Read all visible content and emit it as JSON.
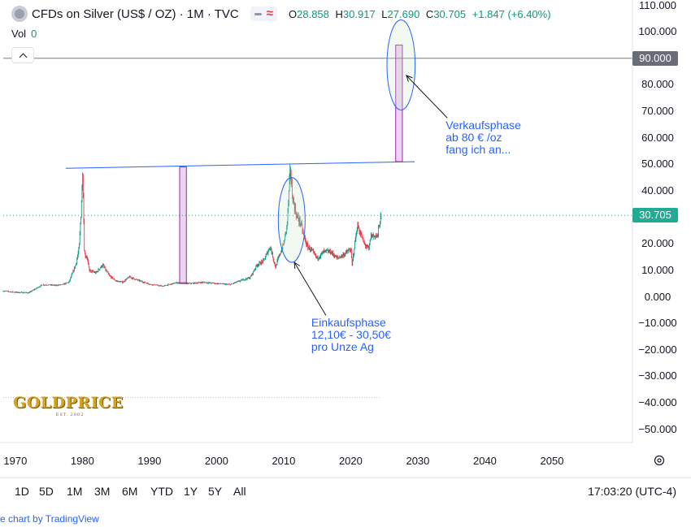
{
  "header": {
    "title": "CFDs on Silver (US$ / OZ) · 1M · TVC",
    "ohlc": [
      {
        "key": "O",
        "value": "28.858"
      },
      {
        "key": "H",
        "value": "30.917"
      },
      {
        "key": "L",
        "value": "27.690"
      },
      {
        "key": "C",
        "value": "30.705"
      }
    ],
    "change": "+1.847 (+6.40%)",
    "vol_label": "Vol",
    "vol_value": "0"
  },
  "colors": {
    "up": "#089981",
    "down": "#f23645",
    "annotation": "#2962ff",
    "band": "#9c27b0",
    "last_price_tag": "#22ab94",
    "level_tag": "#6a6d78"
  },
  "chart_data": {
    "type": "line",
    "symbol": "CFDs on Silver (US$ / OZ)",
    "interval": "1M",
    "x_axis": {
      "range": [
        1968.2,
        2062
      ],
      "ticks": [
        1970,
        1980,
        1990,
        2000,
        2010,
        2020,
        2030,
        2040,
        2050
      ]
    },
    "y_axis": {
      "range": [
        -55,
        112
      ],
      "ticks": [
        110,
        100,
        90,
        80,
        70,
        60,
        50,
        40,
        30,
        20,
        10,
        0,
        -10,
        -20,
        -30,
        -40,
        -50
      ],
      "tick_labels": [
        "110.000",
        "100.000",
        "90.000",
        "80.000",
        "70.000",
        "60.000",
        "50.000",
        "40.000",
        "30.000",
        "20.000",
        "10.000",
        "0.000",
        "−10.000",
        "−20.000",
        "−30.000",
        "−40.000",
        "−50.000"
      ]
    },
    "series": [
      {
        "x": [
          1968.2,
          1970,
          1972,
          1973,
          1974,
          1975,
          1976,
          1977,
          1978,
          1979,
          1979.5,
          1979.8,
          1980.05,
          1980.3,
          1980.7,
          1981,
          1982,
          1983,
          1984,
          1985,
          1986,
          1987,
          1988,
          1990,
          1992,
          1994,
          1996,
          1998,
          2000,
          2002,
          2004,
          2005,
          2006,
          2007,
          2008,
          2008.8,
          2009,
          2010,
          2010.5,
          2011,
          2011.3,
          2011.7,
          2012,
          2012.5,
          2013,
          2013.5,
          2014,
          2015,
          2016,
          2017,
          2018,
          2019,
          2020,
          2020.2,
          2020.6,
          2021,
          2022,
          2022.7,
          2023,
          2023.5,
          2024,
          2024.3,
          2024.6
        ],
        "y": [
          2.2,
          1.7,
          1.5,
          3,
          4.5,
          4.5,
          4.3,
          4.6,
          5.5,
          12,
          18,
          32,
          48,
          16,
          15,
          10,
          9,
          12,
          8,
          6,
          5.5,
          7.5,
          6.5,
          4.8,
          4,
          5.3,
          5,
          5.5,
          5,
          4.6,
          6.5,
          7.2,
          12,
          13.5,
          19,
          11,
          13,
          20,
          27,
          48.5,
          38,
          33,
          30,
          28,
          23,
          19,
          18,
          14.5,
          17,
          17,
          14.5,
          16,
          18,
          12,
          20,
          27,
          20,
          18,
          23,
          23,
          23,
          28,
          30.7
        ]
      }
    ],
    "levels": [
      {
        "value": 90,
        "label": "90.000"
      },
      {
        "value": 30.705,
        "label": "30.705"
      }
    ],
    "trendline": {
      "x1": 1977.5,
      "y1": 48.5,
      "x2": 2029.5,
      "y2": 51
    },
    "bands": [
      {
        "x1": 1994.5,
        "x2": 1995.5,
        "y1": 5,
        "y2": 49
      },
      {
        "x1": 2026.7,
        "x2": 2027.7,
        "y1": 51,
        "y2": 95
      }
    ],
    "ellipses": [
      {
        "cx": 2011.2,
        "cy": 29,
        "rx": 2.0,
        "ry": 16
      },
      {
        "cx": 2027.5,
        "cy": 87.5,
        "rx": 2.1,
        "ry": 17
      }
    ],
    "annotations": [
      {
        "id": "sell",
        "text": "Verkaufsphase\nab 80 € /oz\nfang ich an...",
        "from": [
          2034.4,
          67.5
        ],
        "to": [
          2028.3,
          83.5
        ]
      },
      {
        "id": "buy",
        "text": "Einkaufsphase\n12,10€ - 30,50€\npro Unze Ag",
        "from": [
          2016.3,
          -7
        ],
        "to": [
          2011.6,
          13
        ]
      }
    ],
    "horizontal_marker": {
      "y": -38,
      "x1": 1968.2,
      "x2": 2024.5
    }
  },
  "logo": {
    "wordmark": "GOLDPRICE",
    "est": "EST. 2002"
  },
  "bottom_bar": {
    "ranges": [
      "1D",
      "5D",
      "1M",
      "3M",
      "6M",
      "YTD",
      "1Y",
      "5Y",
      "All"
    ],
    "time": "17:03:20 (UTC-4)"
  },
  "credit": "e chart by TradingView"
}
